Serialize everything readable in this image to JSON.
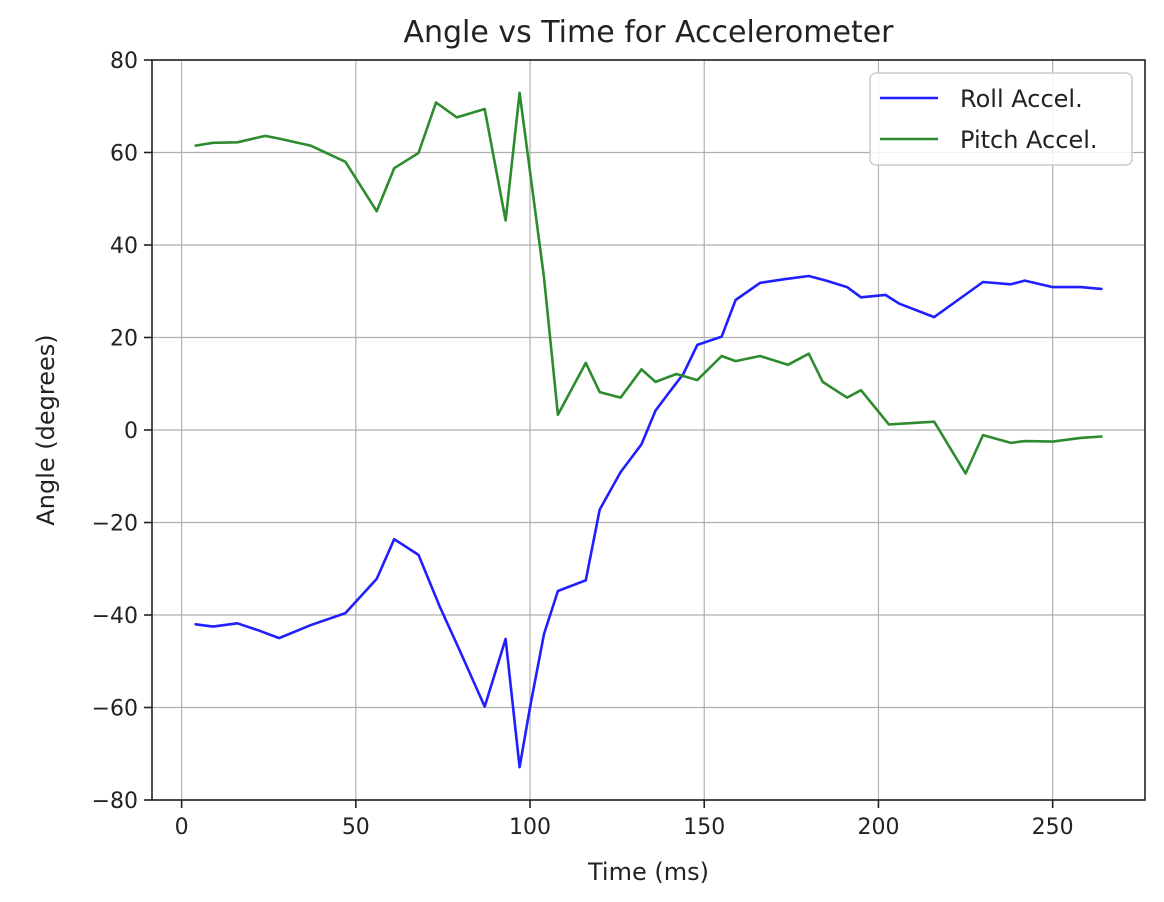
{
  "chart_data": {
    "type": "line",
    "title": "Angle vs Time for Accelerometer",
    "xlabel": "Time (ms)",
    "ylabel": "Angle (degrees)",
    "xlim": [
      -8.5,
      276.5
    ],
    "ylim": [
      -80,
      80
    ],
    "xticks": [
      0,
      50,
      100,
      150,
      200,
      250
    ],
    "xtick_labels": [
      "0",
      "50",
      "100",
      "150",
      "200",
      "250"
    ],
    "yticks": [
      -80,
      -60,
      -40,
      -20,
      0,
      20,
      40,
      60,
      80
    ],
    "ytick_labels": [
      "−80",
      "−60",
      "−40",
      "−20",
      "0",
      "20",
      "40",
      "60",
      "80"
    ],
    "grid": true,
    "legend_position": "top-right",
    "series": [
      {
        "name": "Roll Accel.",
        "color": "#1f1fff",
        "x": [
          4,
          9,
          16,
          22,
          28,
          37,
          47,
          56,
          61,
          68,
          74,
          80,
          87,
          93,
          97,
          100,
          104,
          108,
          116,
          120,
          126,
          132,
          136,
          140,
          144,
          148,
          155,
          159,
          166,
          173,
          180,
          185,
          191,
          195,
          202,
          206,
          216,
          225,
          230,
          238,
          242,
          250,
          258,
          264
        ],
        "y": [
          -42,
          -42.5,
          -41.8,
          -43.3,
          -45,
          -42.2,
          -39.6,
          -32.2,
          -23.6,
          -27,
          -38,
          -48,
          -59.8,
          -45.2,
          -72.9,
          -60,
          -44.1,
          -34.8,
          -32.5,
          -17.2,
          -9.1,
          -3.1,
          4.2,
          8.2,
          12.1,
          18.4,
          20.2,
          28.1,
          31.8,
          32.6,
          33.3,
          32.3,
          30.9,
          28.7,
          29.2,
          27.3,
          24.4,
          29.3,
          32,
          31.5,
          32.3,
          30.9,
          30.9,
          30.5
        ]
      },
      {
        "name": "Pitch Accel.",
        "color": "#2e8b2e",
        "x": [
          4,
          9,
          16,
          24,
          28,
          37,
          47,
          56,
          61,
          68,
          73,
          79,
          87,
          93,
          97,
          104,
          108,
          116,
          120,
          126,
          132,
          136,
          142,
          148,
          155,
          159,
          166,
          174,
          180,
          184,
          191,
          195,
          203,
          216,
          225,
          230,
          238,
          242,
          250,
          258,
          264
        ],
        "y": [
          61.5,
          62.1,
          62.2,
          63.6,
          63,
          61.5,
          58,
          47.3,
          56.6,
          59.9,
          70.8,
          67.6,
          69.4,
          45.3,
          72.9,
          33,
          3.3,
          14.5,
          8.2,
          7,
          13.1,
          10.4,
          12.1,
          10.8,
          16,
          14.9,
          16,
          14.1,
          16.5,
          10.4,
          7,
          8.6,
          1.2,
          1.8,
          -9.4,
          -1.1,
          -2.8,
          -2.4,
          -2.5,
          -1.7,
          -1.4
        ]
      }
    ]
  }
}
